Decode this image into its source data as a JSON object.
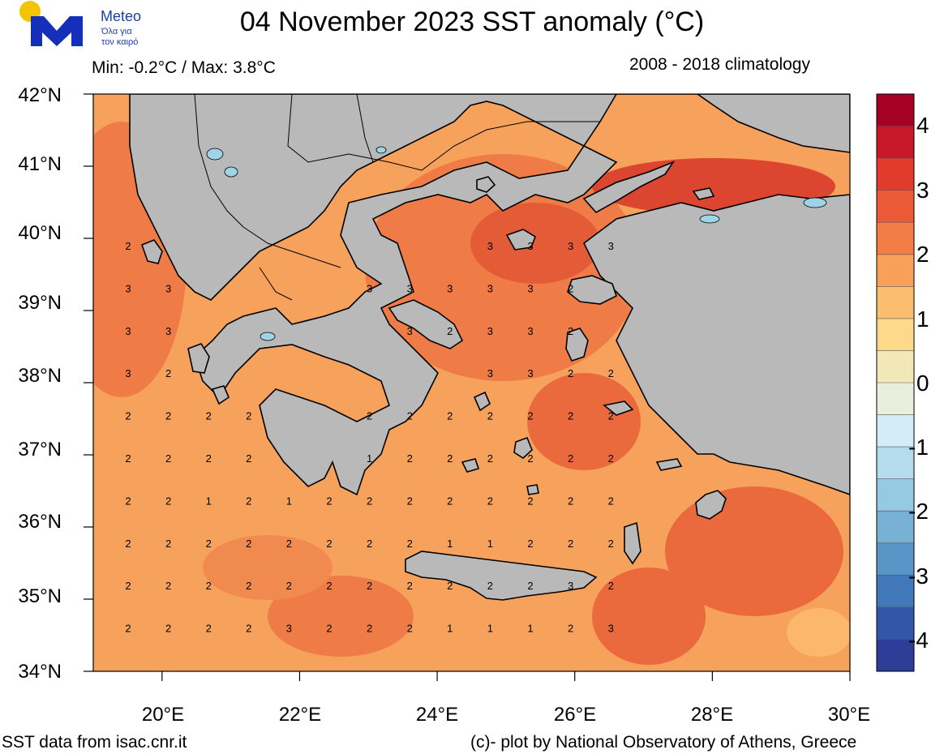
{
  "brand": {
    "name": "Meteo",
    "tagline_line1": "Όλα για",
    "tagline_line2": "τον καιρό"
  },
  "header": {
    "title": "04 November 2023 SST anomaly (°C)",
    "minmax": "Min: -0.2°C / Max: 3.8°C",
    "climatology": "2008 - 2018 climatology"
  },
  "axes": {
    "lat_labels": [
      "42°N",
      "41°N",
      "40°N",
      "39°N",
      "38°N",
      "37°N",
      "36°N",
      "35°N",
      "34°N"
    ],
    "lon_labels": [
      "20°E",
      "22°E",
      "24°E",
      "26°E",
      "28°E",
      "30°E"
    ],
    "lat_range": [
      34,
      42
    ],
    "lon_range": [
      19,
      30
    ]
  },
  "colorbar": {
    "labels": [
      "4",
      "3",
      "2",
      "1",
      "0",
      "-1",
      "-2",
      "-3",
      "-4"
    ],
    "colors": [
      "#a50026",
      "#c8192b",
      "#e03b2d",
      "#ea5a37",
      "#f27d45",
      "#f8a05a",
      "#fbbd6f",
      "#fed98a",
      "#f2e7b6",
      "#e9efdc",
      "#d3ecf5",
      "#b4dcec",
      "#96c9e2",
      "#78b0d6",
      "#5a95c8",
      "#4178ba",
      "#3357a8",
      "#2d3d98"
    ]
  },
  "anomaly_values": [
    [
      "2",
      "",
      "",
      "",
      "",
      "",
      "",
      "",
      "",
      "3",
      "3",
      "3",
      "3"
    ],
    [
      "3",
      "3",
      "",
      "",
      "",
      "",
      "3",
      "3",
      "3",
      "3",
      "3",
      "2",
      ""
    ],
    [
      "3",
      "3",
      "",
      "",
      "",
      "",
      "",
      "3",
      "2",
      "3",
      "3",
      "2",
      ""
    ],
    [
      "3",
      "2",
      "",
      "",
      "",
      "",
      "",
      "",
      "",
      "3",
      "3",
      "2",
      "2"
    ],
    [
      "2",
      "2",
      "2",
      "2",
      "",
      "",
      "2",
      "2",
      "2",
      "2",
      "2",
      "2",
      "2"
    ],
    [
      "2",
      "2",
      "2",
      "2",
      "",
      "",
      "1",
      "2",
      "2",
      "2",
      "2",
      "2",
      "2"
    ],
    [
      "2",
      "2",
      "1",
      "2",
      "1",
      "2",
      "2",
      "2",
      "2",
      "2",
      "2",
      "2",
      "2"
    ],
    [
      "2",
      "2",
      "2",
      "2",
      "2",
      "2",
      "2",
      "2",
      "1",
      "1",
      "2",
      "2",
      "2"
    ],
    [
      "2",
      "2",
      "2",
      "2",
      "2",
      "2",
      "2",
      "2",
      "2",
      "2",
      "2",
      "3",
      "2"
    ],
    [
      "2",
      "2",
      "2",
      "2",
      "3",
      "2",
      "2",
      "2",
      "1",
      "1",
      "1",
      "2",
      "3"
    ]
  ],
  "footer": {
    "source": "SST data from isac.cnr.it",
    "credit": "(c)- plot by National Observatory of Athens, Greece"
  }
}
